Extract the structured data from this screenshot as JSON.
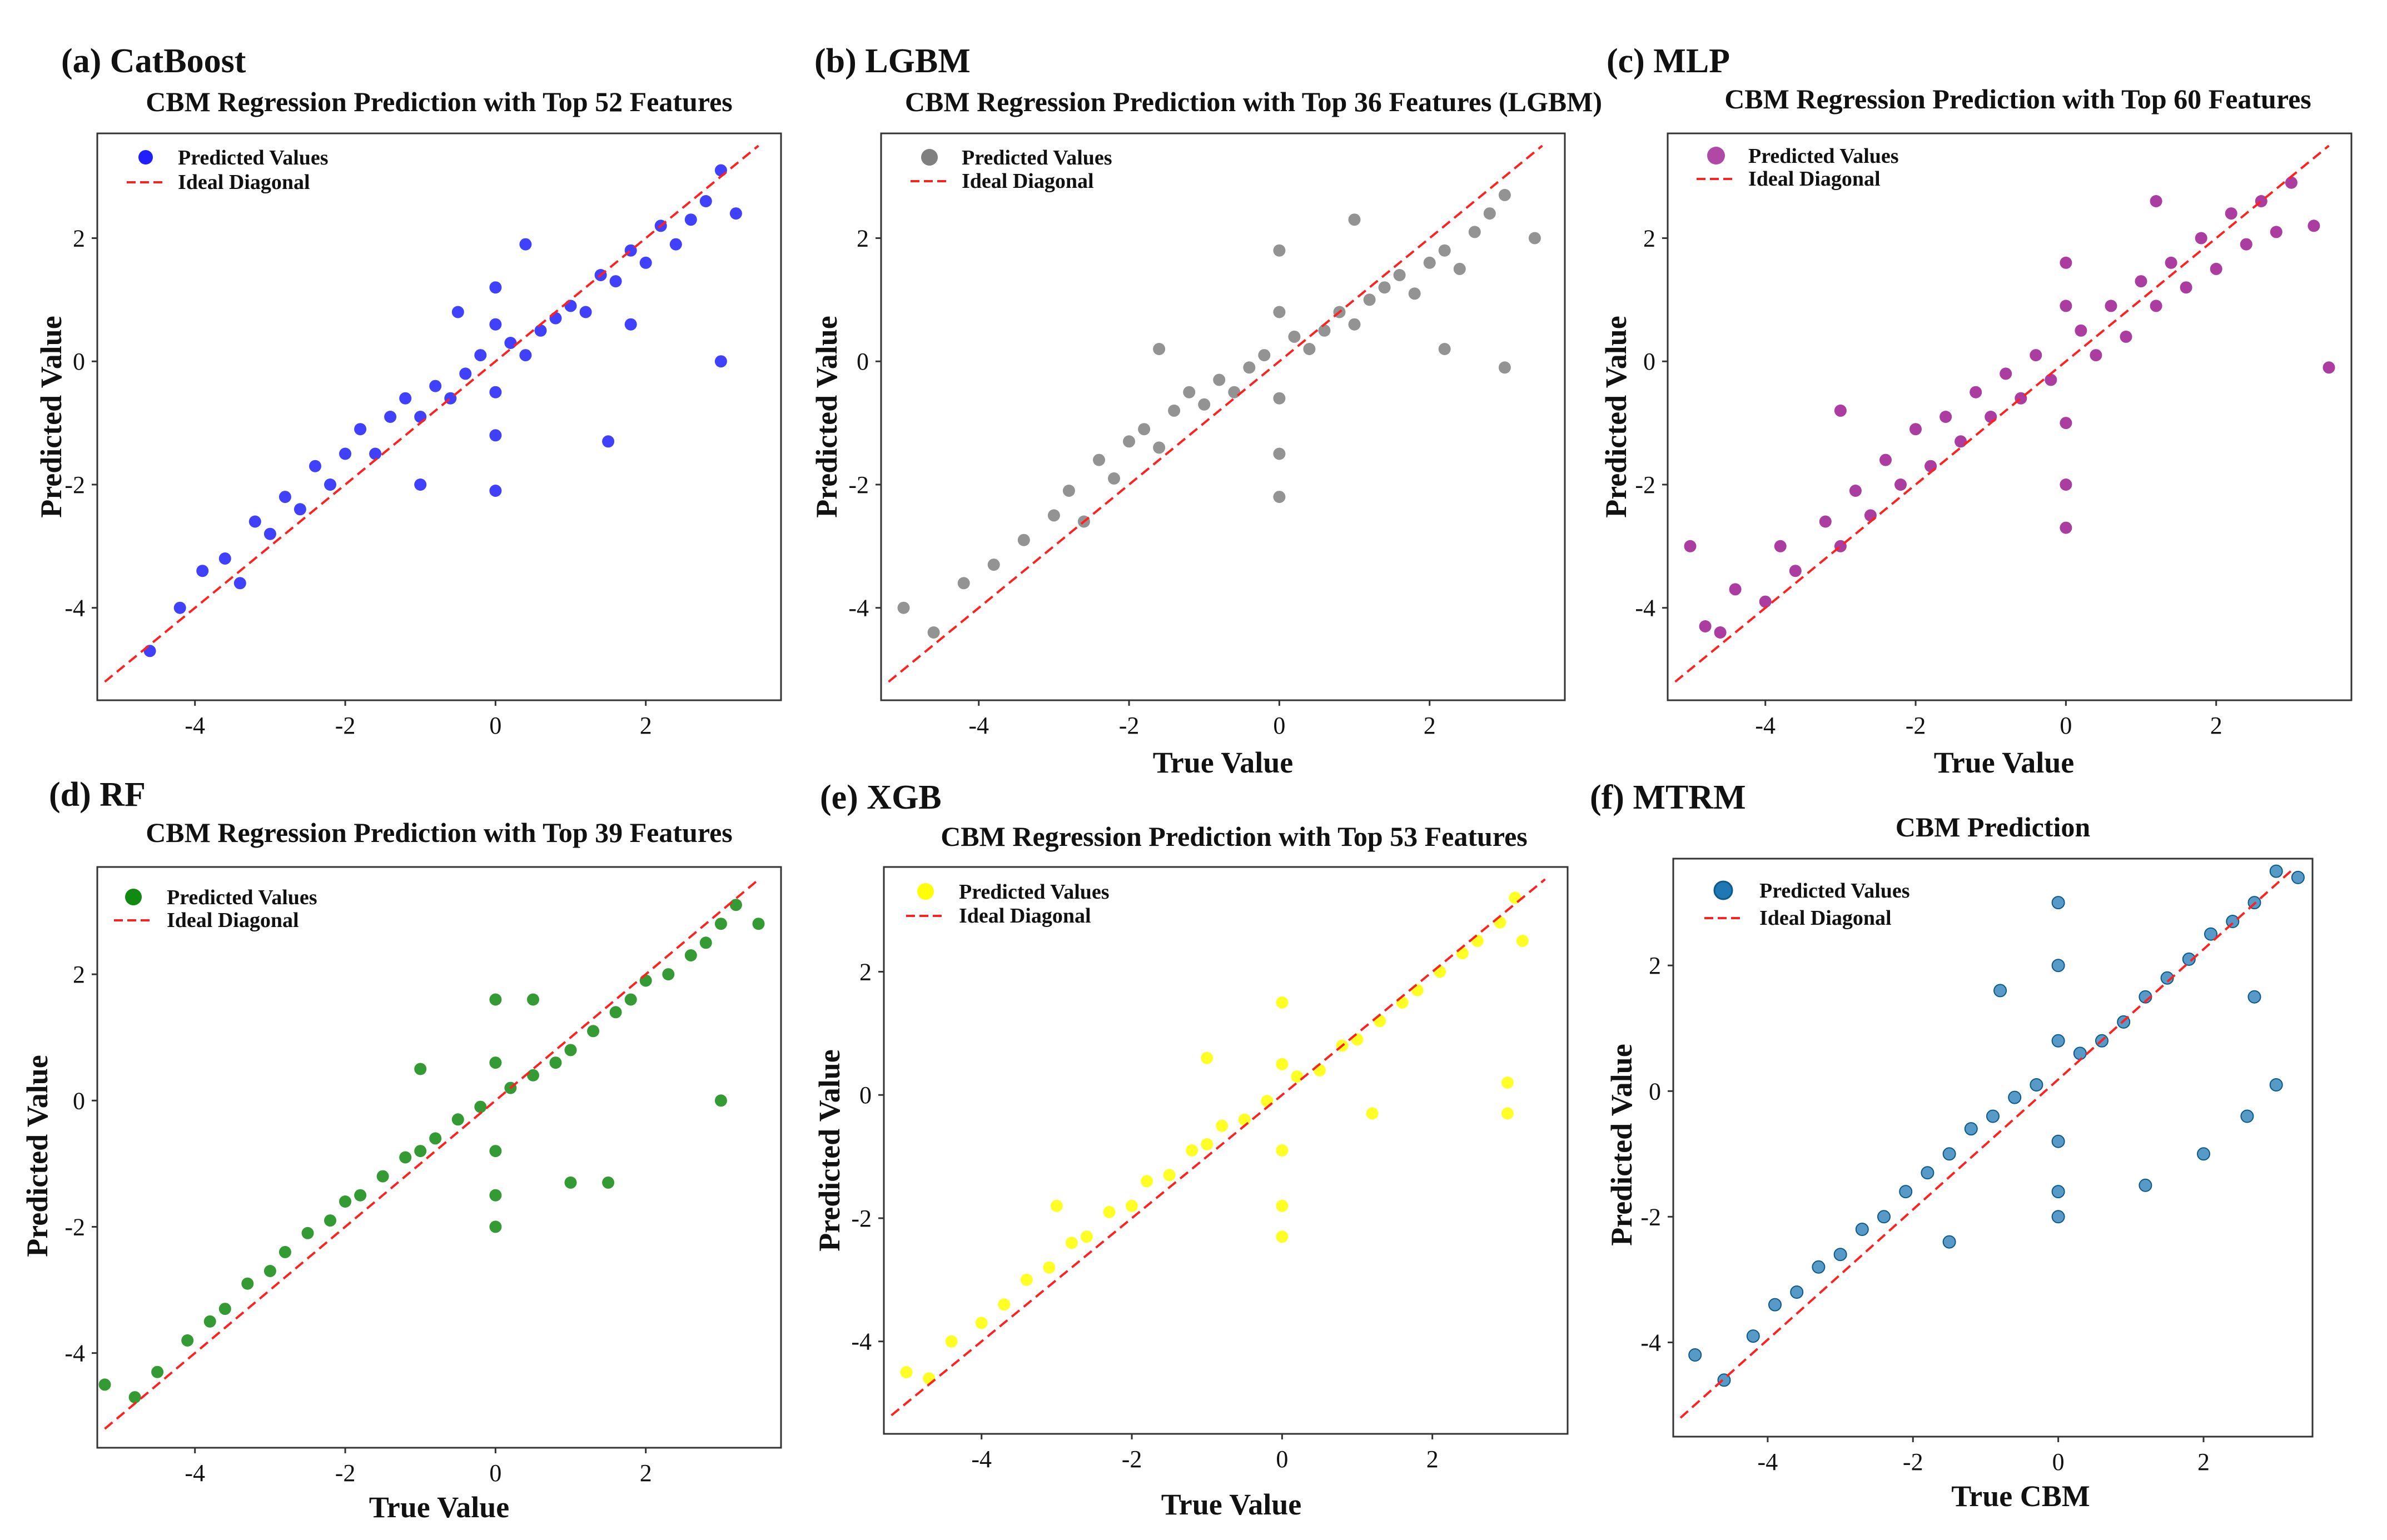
{
  "chart_data": [
    {
      "type": "scatter",
      "panel_label": "(a) CatBoost",
      "title": "CBM Regression Prediction with Top 52 Features",
      "xlabel": "",
      "ylabel": "Predicted Value",
      "xlim": [
        -5.3,
        3.8
      ],
      "ylim": [
        -5.5,
        3.7
      ],
      "xticks": [
        -4,
        -2,
        0,
        2
      ],
      "yticks": [
        -4,
        -2,
        0,
        2
      ],
      "color": "#1f1fff",
      "legend": [
        "Predicted Values",
        "Ideal Diagonal"
      ],
      "diagonal": [
        [
          -5.2,
          -5.2
        ],
        [
          3.5,
          3.5
        ]
      ],
      "points": [
        [
          -4.6,
          -4.7
        ],
        [
          -4.2,
          -4.0
        ],
        [
          -3.9,
          -3.4
        ],
        [
          -3.6,
          -3.2
        ],
        [
          -3.4,
          -3.6
        ],
        [
          -3.2,
          -2.6
        ],
        [
          -3.0,
          -2.8
        ],
        [
          -2.8,
          -2.2
        ],
        [
          -2.6,
          -2.4
        ],
        [
          -2.4,
          -1.7
        ],
        [
          -2.2,
          -2.0
        ],
        [
          -2.0,
          -1.5
        ],
        [
          -1.8,
          -1.1
        ],
        [
          -1.6,
          -1.5
        ],
        [
          -1.4,
          -0.9
        ],
        [
          -1.2,
          -0.6
        ],
        [
          -1.0,
          -0.9
        ],
        [
          -0.8,
          -0.4
        ],
        [
          -0.6,
          -0.6
        ],
        [
          -0.4,
          -0.2
        ],
        [
          -0.2,
          0.1
        ],
        [
          0.0,
          1.2
        ],
        [
          0.0,
          0.6
        ],
        [
          0.0,
          -0.5
        ],
        [
          0.0,
          -1.2
        ],
        [
          0.0,
          -2.1
        ],
        [
          0.2,
          0.3
        ],
        [
          0.4,
          0.1
        ],
        [
          0.6,
          0.5
        ],
        [
          0.8,
          0.7
        ],
        [
          1.0,
          0.9
        ],
        [
          1.2,
          0.8
        ],
        [
          1.4,
          1.4
        ],
        [
          1.6,
          1.3
        ],
        [
          1.8,
          1.8
        ],
        [
          2.0,
          1.6
        ],
        [
          2.2,
          2.2
        ],
        [
          2.4,
          1.9
        ],
        [
          2.6,
          2.3
        ],
        [
          2.8,
          2.6
        ],
        [
          3.0,
          3.1
        ],
        [
          3.0,
          0.0
        ],
        [
          3.2,
          2.4
        ],
        [
          -1.0,
          -2.0
        ],
        [
          1.5,
          -1.3
        ],
        [
          -0.5,
          0.8
        ],
        [
          1.8,
          0.6
        ],
        [
          0.4,
          1.9
        ]
      ]
    },
    {
      "type": "scatter",
      "panel_label": "(b) LGBM",
      "title": "CBM Regression Prediction with Top 36 Features (LGBM)",
      "xlabel": "True Value",
      "ylabel": "Predicted Value",
      "xlim": [
        -5.3,
        3.8
      ],
      "ylim": [
        -5.5,
        3.7
      ],
      "xticks": [
        -4,
        -2,
        0,
        2
      ],
      "yticks": [
        -4,
        -2,
        0,
        2
      ],
      "color": "#808080",
      "legend": [
        "Predicted Values",
        "Ideal Diagonal"
      ],
      "diagonal": [
        [
          -5.2,
          -5.2
        ],
        [
          3.5,
          3.5
        ]
      ],
      "points": [
        [
          -5.0,
          -4.0
        ],
        [
          -4.6,
          -4.4
        ],
        [
          -4.2,
          -3.6
        ],
        [
          -3.8,
          -3.3
        ],
        [
          -3.4,
          -2.9
        ],
        [
          -3.0,
          -2.5
        ],
        [
          -2.8,
          -2.1
        ],
        [
          -2.6,
          -2.6
        ],
        [
          -2.4,
          -1.6
        ],
        [
          -2.2,
          -1.9
        ],
        [
          -2.0,
          -1.3
        ],
        [
          -1.8,
          -1.1
        ],
        [
          -1.6,
          -1.4
        ],
        [
          -1.4,
          -0.8
        ],
        [
          -1.2,
          -0.5
        ],
        [
          -1.0,
          -0.7
        ],
        [
          -0.8,
          -0.3
        ],
        [
          -0.6,
          -0.5
        ],
        [
          -0.4,
          -0.1
        ],
        [
          -0.2,
          0.1
        ],
        [
          0.0,
          1.8
        ],
        [
          0.0,
          0.8
        ],
        [
          0.0,
          -0.6
        ],
        [
          0.0,
          -1.5
        ],
        [
          0.0,
          -2.2
        ],
        [
          0.2,
          0.4
        ],
        [
          0.4,
          0.2
        ],
        [
          0.6,
          0.5
        ],
        [
          0.8,
          0.8
        ],
        [
          1.0,
          0.6
        ],
        [
          1.2,
          1.0
        ],
        [
          1.4,
          1.2
        ],
        [
          1.6,
          1.4
        ],
        [
          1.8,
          1.1
        ],
        [
          2.0,
          1.6
        ],
        [
          2.2,
          1.8
        ],
        [
          2.4,
          1.5
        ],
        [
          2.6,
          2.1
        ],
        [
          2.8,
          2.4
        ],
        [
          3.0,
          2.7
        ],
        [
          3.0,
          -0.1
        ],
        [
          3.4,
          2.0
        ],
        [
          -1.6,
          0.2
        ],
        [
          1.0,
          2.3
        ],
        [
          2.2,
          0.2
        ]
      ]
    },
    {
      "type": "scatter",
      "panel_label": "(c) MLP",
      "title": "CBM Regression Prediction with Top 60 Features",
      "xlabel": "True Value",
      "ylabel": "Predicted Value",
      "xlim": [
        -5.3,
        3.8
      ],
      "ylim": [
        -5.5,
        3.7
      ],
      "xticks": [
        -4,
        -2,
        0,
        2
      ],
      "yticks": [
        -4,
        -2,
        0,
        2
      ],
      "color": "#9b1b8e",
      "legend": [
        "Predicted Values",
        "Ideal Diagonal"
      ],
      "diagonal": [
        [
          -5.2,
          -5.2
        ],
        [
          3.5,
          3.5
        ]
      ],
      "points": [
        [
          -4.8,
          -4.3
        ],
        [
          -4.6,
          -4.4
        ],
        [
          -4.4,
          -3.7
        ],
        [
          -4.0,
          -3.9
        ],
        [
          -3.8,
          -3.0
        ],
        [
          -3.6,
          -3.4
        ],
        [
          -3.2,
          -2.6
        ],
        [
          -3.0,
          -3.0
        ],
        [
          -2.8,
          -2.1
        ],
        [
          -2.6,
          -2.5
        ],
        [
          -2.4,
          -1.6
        ],
        [
          -2.2,
          -2.0
        ],
        [
          -2.0,
          -1.1
        ],
        [
          -1.8,
          -1.7
        ],
        [
          -1.6,
          -0.9
        ],
        [
          -1.4,
          -1.3
        ],
        [
          -1.2,
          -0.5
        ],
        [
          -1.0,
          -0.9
        ],
        [
          -0.8,
          -0.2
        ],
        [
          -0.6,
          -0.6
        ],
        [
          -0.4,
          0.1
        ],
        [
          -0.2,
          -0.3
        ],
        [
          0.0,
          1.6
        ],
        [
          0.0,
          0.9
        ],
        [
          0.0,
          -1.0
        ],
        [
          0.0,
          -2.0
        ],
        [
          0.0,
          -2.7
        ],
        [
          0.2,
          0.5
        ],
        [
          0.4,
          0.1
        ],
        [
          0.6,
          0.9
        ],
        [
          0.8,
          0.4
        ],
        [
          1.0,
          1.3
        ],
        [
          1.2,
          0.9
        ],
        [
          1.4,
          1.6
        ],
        [
          1.6,
          1.2
        ],
        [
          1.8,
          2.0
        ],
        [
          2.0,
          1.5
        ],
        [
          2.2,
          2.4
        ],
        [
          2.4,
          1.9
        ],
        [
          2.6,
          2.6
        ],
        [
          2.8,
          2.1
        ],
        [
          3.0,
          2.9
        ],
        [
          3.3,
          2.2
        ],
        [
          3.5,
          -0.1
        ],
        [
          -5.0,
          -3.0
        ],
        [
          -3.0,
          -0.8
        ],
        [
          1.2,
          2.6
        ]
      ]
    },
    {
      "type": "scatter",
      "panel_label": "(d) RF",
      "title": "CBM Regression Prediction with Top 39 Features",
      "xlabel": "True Value",
      "ylabel": "Predicted Value",
      "xlim": [
        -5.3,
        3.8
      ],
      "ylim": [
        -5.5,
        3.7
      ],
      "xticks": [
        -4,
        -2,
        0,
        2
      ],
      "yticks": [
        -4,
        -2,
        0,
        2
      ],
      "color": "#108a10",
      "legend": [
        "Predicted Values",
        "Ideal Diagonal"
      ],
      "diagonal": [
        [
          -5.2,
          -5.2
        ],
        [
          3.5,
          3.5
        ]
      ],
      "points": [
        [
          -5.2,
          -4.5
        ],
        [
          -4.8,
          -4.7
        ],
        [
          -4.5,
          -4.3
        ],
        [
          -4.1,
          -3.8
        ],
        [
          -3.8,
          -3.5
        ],
        [
          -3.6,
          -3.3
        ],
        [
          -3.3,
          -2.9
        ],
        [
          -3.0,
          -2.7
        ],
        [
          -2.8,
          -2.4
        ],
        [
          -2.5,
          -2.1
        ],
        [
          -2.2,
          -1.9
        ],
        [
          -2.0,
          -1.6
        ],
        [
          -1.8,
          -1.5
        ],
        [
          -1.5,
          -1.2
        ],
        [
          -1.2,
          -0.9
        ],
        [
          -1.0,
          -0.8
        ],
        [
          -0.8,
          -0.6
        ],
        [
          -0.5,
          -0.3
        ],
        [
          -0.2,
          -0.1
        ],
        [
          0.0,
          1.6
        ],
        [
          0.0,
          0.6
        ],
        [
          0.0,
          -0.8
        ],
        [
          0.0,
          -1.5
        ],
        [
          0.0,
          -2.0
        ],
        [
          0.2,
          0.2
        ],
        [
          0.5,
          0.4
        ],
        [
          0.8,
          0.6
        ],
        [
          1.0,
          0.8
        ],
        [
          1.3,
          1.1
        ],
        [
          1.6,
          1.4
        ],
        [
          1.8,
          1.6
        ],
        [
          2.0,
          1.9
        ],
        [
          2.3,
          2.0
        ],
        [
          2.6,
          2.3
        ],
        [
          2.8,
          2.5
        ],
        [
          3.0,
          2.8
        ],
        [
          3.2,
          3.1
        ],
        [
          3.5,
          2.8
        ],
        [
          3.0,
          0.0
        ],
        [
          1.0,
          -1.3
        ],
        [
          1.5,
          -1.3
        ],
        [
          -1.0,
          0.5
        ],
        [
          0.5,
          1.6
        ]
      ]
    },
    {
      "type": "scatter",
      "panel_label": "(e) XGB",
      "title": "CBM Regression Prediction with Top 53 Features",
      "xlabel": "True Value",
      "ylabel": "Predicted Value",
      "xlim": [
        -5.3,
        3.8
      ],
      "ylim": [
        -5.5,
        3.7
      ],
      "xticks": [
        -4,
        -2,
        0,
        2
      ],
      "yticks": [
        -4,
        -2,
        0,
        2
      ],
      "color": "#ffff00",
      "legend": [
        "Predicted Values",
        "Ideal Diagonal"
      ],
      "diagonal": [
        [
          -5.2,
          -5.2
        ],
        [
          3.5,
          3.5
        ]
      ],
      "points": [
        [
          -5.0,
          -4.5
        ],
        [
          -4.7,
          -4.6
        ],
        [
          -4.4,
          -4.0
        ],
        [
          -4.0,
          -3.7
        ],
        [
          -3.7,
          -3.4
        ],
        [
          -3.4,
          -3.0
        ],
        [
          -3.1,
          -2.8
        ],
        [
          -2.8,
          -2.4
        ],
        [
          -2.6,
          -2.3
        ],
        [
          -2.3,
          -1.9
        ],
        [
          -2.0,
          -1.8
        ],
        [
          -1.8,
          -1.4
        ],
        [
          -1.5,
          -1.3
        ],
        [
          -1.2,
          -0.9
        ],
        [
          -1.0,
          -0.8
        ],
        [
          -0.8,
          -0.5
        ],
        [
          -0.5,
          -0.4
        ],
        [
          -0.2,
          -0.1
        ],
        [
          0.0,
          1.5
        ],
        [
          0.0,
          0.5
        ],
        [
          0.0,
          -0.9
        ],
        [
          0.0,
          -1.8
        ],
        [
          0.0,
          -2.3
        ],
        [
          0.2,
          0.3
        ],
        [
          0.5,
          0.4
        ],
        [
          0.8,
          0.8
        ],
        [
          1.0,
          0.9
        ],
        [
          1.3,
          1.2
        ],
        [
          1.6,
          1.5
        ],
        [
          1.8,
          1.7
        ],
        [
          2.1,
          2.0
        ],
        [
          2.4,
          2.3
        ],
        [
          2.6,
          2.5
        ],
        [
          2.9,
          2.8
        ],
        [
          3.1,
          3.2
        ],
        [
          3.2,
          2.5
        ],
        [
          3.0,
          0.2
        ],
        [
          3.0,
          -0.3
        ],
        [
          -1.0,
          0.6
        ],
        [
          1.2,
          -0.3
        ],
        [
          -3.0,
          -1.8
        ]
      ]
    },
    {
      "type": "scatter",
      "panel_label": "(f) MTRM",
      "title": "CBM Prediction",
      "xlabel": "True CBM",
      "ylabel": "Predicted Value",
      "xlim": [
        -5.3,
        3.5
      ],
      "ylim": [
        -5.5,
        3.7
      ],
      "xticks": [
        -4,
        -2,
        0,
        2
      ],
      "yticks": [
        -4,
        -2,
        0,
        2
      ],
      "color": "#1f77b4",
      "legend": [
        "Predicted Values",
        "Ideal Diagonal"
      ],
      "diagonal": [
        [
          -5.2,
          -5.2
        ],
        [
          3.2,
          3.5
        ]
      ],
      "points": [
        [
          -5.0,
          -4.2
        ],
        [
          -4.6,
          -4.6
        ],
        [
          -4.2,
          -3.9
        ],
        [
          -3.9,
          -3.4
        ],
        [
          -3.6,
          -3.2
        ],
        [
          -3.3,
          -2.8
        ],
        [
          -3.0,
          -2.6
        ],
        [
          -2.7,
          -2.2
        ],
        [
          -2.4,
          -2.0
        ],
        [
          -2.1,
          -1.6
        ],
        [
          -1.8,
          -1.3
        ],
        [
          -1.5,
          -1.0
        ],
        [
          -1.2,
          -0.6
        ],
        [
          -0.9,
          -0.4
        ],
        [
          -0.6,
          -0.1
        ],
        [
          -0.3,
          0.1
        ],
        [
          0.0,
          3.0
        ],
        [
          0.0,
          2.0
        ],
        [
          0.0,
          0.8
        ],
        [
          0.0,
          -0.8
        ],
        [
          0.0,
          -1.6
        ],
        [
          0.0,
          -2.0
        ],
        [
          0.3,
          0.6
        ],
        [
          0.6,
          0.8
        ],
        [
          0.9,
          1.1
        ],
        [
          1.2,
          1.5
        ],
        [
          1.5,
          1.8
        ],
        [
          1.8,
          2.1
        ],
        [
          2.1,
          2.5
        ],
        [
          2.4,
          2.7
        ],
        [
          2.7,
          3.0
        ],
        [
          3.0,
          3.5
        ],
        [
          3.3,
          3.4
        ],
        [
          2.6,
          -0.4
        ],
        [
          3.0,
          0.1
        ],
        [
          2.0,
          -1.0
        ],
        [
          1.2,
          -1.5
        ],
        [
          -0.8,
          1.6
        ],
        [
          -1.5,
          -2.4
        ],
        [
          2.7,
          1.5
        ]
      ]
    }
  ]
}
